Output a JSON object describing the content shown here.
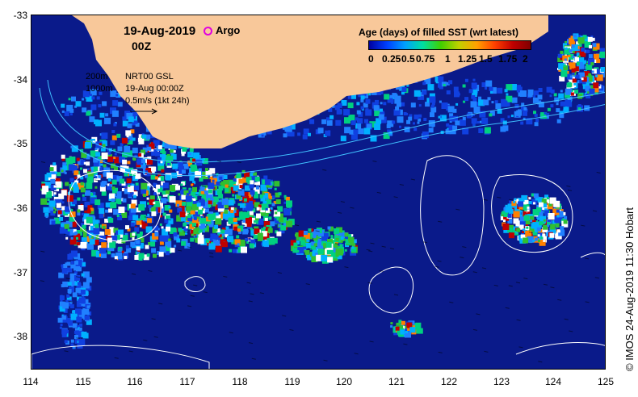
{
  "title": {
    "date": "19-Aug-2019",
    "hour": "00Z"
  },
  "argo_legend": {
    "label": "Argo",
    "color": "#e000e0"
  },
  "colorbar": {
    "title": "Age (days) of filled SST (wrt latest)",
    "ticks": [
      "0",
      "0.25",
      "0.5",
      "0.75",
      "1",
      "1.25",
      "1.5",
      "1.75",
      "2"
    ],
    "colors": [
      "#0000a0",
      "#0040ff",
      "#00a0ff",
      "#00e0a0",
      "#40d000",
      "#c0d000",
      "#ffa000",
      "#ff4000",
      "#c00000",
      "#800000"
    ]
  },
  "info_box": {
    "line1": "200m",
    "line2": "1000m",
    "line3": "NRT00 GSL",
    "line4": "19-Aug 00:00Z",
    "line5": "0.5m/s (1kt 24h)"
  },
  "axes": {
    "x_ticks": [
      "114",
      "115",
      "116",
      "117",
      "118",
      "119",
      "120",
      "121",
      "122",
      "123",
      "124",
      "125"
    ],
    "y_ticks": [
      "-33",
      "-34",
      "-35",
      "-36",
      "-37",
      "-38"
    ],
    "xlim": [
      114,
      125
    ],
    "ylim": [
      -38.5,
      -33
    ]
  },
  "credit": "© IMOS 24-Aug-2019 11:30 Hobart",
  "colors": {
    "land": "#f8c89a",
    "ocean": "#0a1a8a",
    "bathymetry": "#40c0ff",
    "contour": "#ffffff"
  }
}
